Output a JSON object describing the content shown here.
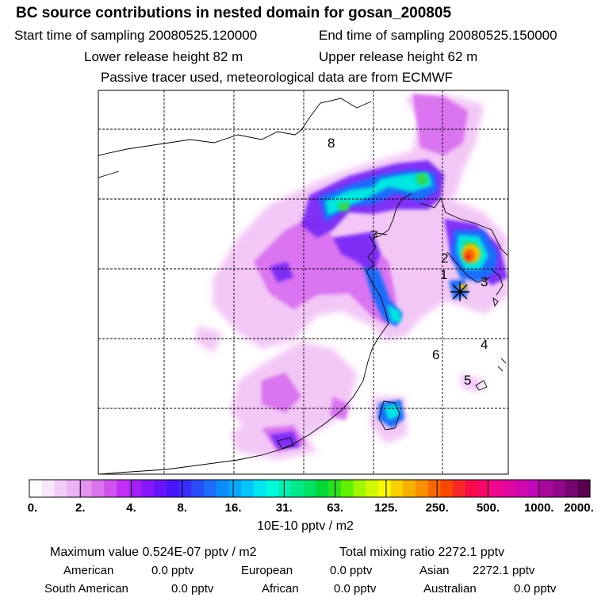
{
  "title": "BC  source contributions in nested domain for gosan_200805",
  "sampling": {
    "start_label": "Start time of sampling 20080525.120000",
    "end_label": "End time of sampling 20080525.150000"
  },
  "release": {
    "lower_label": "Lower release height   82 m",
    "upper_label": "Upper release height   62 m"
  },
  "note": "Passive tracer used, meteorological data are from ECMWF",
  "chart_data": {
    "type": "heatmap",
    "variable": "BC source contributions",
    "region_labels": [
      "1",
      "2",
      "3",
      "4",
      "5",
      "6",
      "7",
      "8"
    ],
    "colorbar": {
      "tick_labels": [
        "0.",
        "2.",
        "4.",
        "8.",
        "16.",
        "31.",
        "63.",
        "125.",
        "250.",
        "500.",
        "1000.",
        "2000."
      ],
      "unit_label": "10E-10 pptv / m2",
      "colors": [
        "#ffffff",
        "#f8e6fb",
        "#f2cdf7",
        "#eab3f3",
        "#e394ef",
        "#db74ec",
        "#d052f0",
        "#c32ef7",
        "#a51ff9",
        "#8618fb",
        "#6814fb",
        "#4a14fb",
        "#3a2cfb",
        "#2a4cfb",
        "#1a6cfb",
        "#0a8cfb",
        "#06a8fb",
        "#04c4fb",
        "#00e6f0",
        "#00f8dc",
        "#00f0b4",
        "#00e88c",
        "#00e064",
        "#00d838",
        "#28e020",
        "#60f000",
        "#a0f800",
        "#d0f800",
        "#f8f800",
        "#f8d000",
        "#f8b000",
        "#f89000",
        "#f86800",
        "#f84800",
        "#f82828",
        "#f80c48",
        "#f8086c",
        "#f00890",
        "#e008a0",
        "#d008b0",
        "#c008b8",
        "#a8089c",
        "#900888",
        "#780470",
        "#5a0050"
      ]
    },
    "receptor": "gosan",
    "max_concentration_color": "#f81010",
    "gridline_style": "dashed"
  },
  "maximum_label": "Maximum value  0.524E-07 pptv / m2",
  "total_label": "Total mixing ratio     2272.1 pptv",
  "regions": {
    "american": {
      "name": "American",
      "value": "0.0 pptv"
    },
    "european": {
      "name": "European",
      "value": "0.0 pptv"
    },
    "asian": {
      "name": "Asian",
      "value": "2272.1 pptv"
    },
    "south_american": {
      "name": "South American",
      "value": "0.0 pptv"
    },
    "african": {
      "name": "African",
      "value": "0.0 pptv"
    },
    "australian": {
      "name": "Australian",
      "value": "0.0 pptv"
    }
  }
}
